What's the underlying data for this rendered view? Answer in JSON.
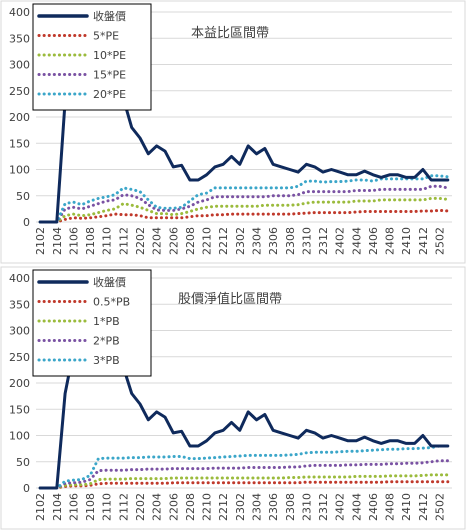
{
  "chart_data": [
    {
      "type": "line",
      "title": "本益比區間帶",
      "ylim": [
        0,
        400
      ],
      "yticks": [
        0,
        50,
        100,
        150,
        200,
        250,
        300,
        350,
        400
      ],
      "grid": true,
      "legend_placement": "top-left",
      "categories": [
        "2102",
        "2103",
        "2104",
        "2105",
        "2106",
        "2107",
        "2108",
        "2109",
        "2110",
        "2111",
        "2112",
        "2201",
        "2202",
        "2203",
        "2204",
        "2205",
        "2206",
        "2207",
        "2208",
        "2209",
        "2210",
        "2211",
        "2212",
        "2301",
        "2302",
        "2303",
        "2304",
        "2305",
        "2306",
        "2307",
        "2308",
        "2309",
        "2310",
        "2311",
        "2312",
        "2401",
        "2402",
        "2403",
        "2404",
        "2405",
        "2406",
        "2407",
        "2408",
        "2409",
        "2410",
        "2411",
        "2412",
        "2501",
        "2502",
        "2503"
      ],
      "tick_labels": [
        "2102",
        "2104",
        "2106",
        "2108",
        "2110",
        "2112",
        "2202",
        "2204",
        "2206",
        "2208",
        "2210",
        "2212",
        "2302",
        "2304",
        "2306",
        "2308",
        "2310",
        "2312",
        "2402",
        "2404",
        "2406",
        "2408",
        "2410",
        "2412",
        "2502"
      ],
      "series": [
        {
          "name": "收盤價",
          "color": "#0f2a5c",
          "style": "solid",
          "values": [
            0,
            0,
            0,
            230,
            250,
            250,
            250,
            250,
            245,
            250,
            235,
            180,
            160,
            130,
            145,
            135,
            105,
            108,
            80,
            80,
            90,
            105,
            110,
            125,
            110,
            145,
            130,
            140,
            110,
            105,
            100,
            95,
            110,
            105,
            95,
            100,
            95,
            90,
            90,
            97,
            90,
            85,
            90,
            90,
            85,
            85,
            100,
            80,
            80,
            80
          ]
        },
        {
          "name": "5*PE",
          "color": "#c0392b",
          "style": "dotted",
          "values": [
            0,
            0,
            0,
            5,
            8,
            7,
            8,
            10,
            12,
            15,
            14,
            14,
            12,
            8,
            8,
            8,
            8,
            8,
            10,
            12,
            12,
            14,
            14,
            15,
            15,
            15,
            15,
            15,
            15,
            15,
            15,
            16,
            17,
            18,
            18,
            18,
            18,
            18,
            19,
            20,
            20,
            20,
            20,
            20,
            20,
            20,
            21,
            21,
            22,
            21
          ]
        },
        {
          "name": "10*PE",
          "color": "#9bbb3c",
          "style": "dotted",
          "values": [
            0,
            0,
            0,
            12,
            15,
            12,
            14,
            18,
            22,
            25,
            35,
            32,
            28,
            22,
            16,
            16,
            14,
            16,
            20,
            25,
            28,
            30,
            30,
            30,
            30,
            30,
            30,
            32,
            32,
            32,
            32,
            33,
            36,
            38,
            38,
            38,
            38,
            38,
            40,
            40,
            40,
            42,
            42,
            42,
            42,
            42,
            42,
            45,
            45,
            43
          ]
        },
        {
          "name": "15*PE",
          "color": "#7a52a3",
          "style": "dotted",
          "values": [
            0,
            0,
            0,
            25,
            28,
            25,
            30,
            35,
            40,
            42,
            52,
            50,
            45,
            33,
            23,
            22,
            22,
            25,
            30,
            38,
            42,
            48,
            48,
            48,
            48,
            48,
            48,
            48,
            50,
            50,
            50,
            52,
            58,
            58,
            58,
            58,
            58,
            58,
            60,
            60,
            60,
            62,
            62,
            62,
            62,
            62,
            62,
            68,
            68,
            65
          ]
        },
        {
          "name": "20*PE",
          "color": "#3ba6c9",
          "style": "dotted",
          "values": [
            0,
            0,
            0,
            35,
            38,
            33,
            40,
            45,
            48,
            52,
            65,
            62,
            58,
            42,
            28,
            26,
            26,
            28,
            40,
            52,
            55,
            65,
            65,
            65,
            65,
            65,
            65,
            65,
            65,
            65,
            65,
            68,
            78,
            78,
            76,
            77,
            77,
            78,
            80,
            80,
            78,
            82,
            82,
            82,
            82,
            82,
            82,
            88,
            88,
            86
          ]
        }
      ]
    },
    {
      "type": "line",
      "title": "股價淨值比區間帶",
      "ylim": [
        0,
        400
      ],
      "yticks": [
        0,
        50,
        100,
        150,
        200,
        250,
        300,
        350,
        400
      ],
      "grid": true,
      "legend_placement": "top-left",
      "categories": [
        "2102",
        "2103",
        "2104",
        "2105",
        "2106",
        "2107",
        "2108",
        "2109",
        "2110",
        "2111",
        "2112",
        "2201",
        "2202",
        "2203",
        "2204",
        "2205",
        "2206",
        "2207",
        "2208",
        "2209",
        "2210",
        "2211",
        "2212",
        "2301",
        "2302",
        "2303",
        "2304",
        "2305",
        "2306",
        "2307",
        "2308",
        "2309",
        "2310",
        "2311",
        "2312",
        "2401",
        "2402",
        "2403",
        "2404",
        "2405",
        "2406",
        "2407",
        "2408",
        "2409",
        "2410",
        "2411",
        "2412",
        "2501",
        "2502",
        "2503"
      ],
      "tick_labels": [
        "2102",
        "2104",
        "2106",
        "2108",
        "2110",
        "2112",
        "2202",
        "2204",
        "2206",
        "2208",
        "2210",
        "2212",
        "2302",
        "2304",
        "2306",
        "2308",
        "2310",
        "2312",
        "2402",
        "2404",
        "2406",
        "2408",
        "2410",
        "2412",
        "2502"
      ],
      "series": [
        {
          "name": "收盤價",
          "color": "#0f2a5c",
          "style": "solid",
          "values": [
            0,
            0,
            0,
            180,
            260,
            250,
            220,
            250,
            250,
            250,
            230,
            180,
            160,
            130,
            145,
            135,
            105,
            108,
            80,
            80,
            90,
            105,
            110,
            125,
            110,
            145,
            130,
            140,
            110,
            105,
            100,
            95,
            110,
            105,
            95,
            100,
            95,
            90,
            90,
            97,
            90,
            85,
            90,
            90,
            85,
            85,
            100,
            80,
            80,
            80
          ]
        },
        {
          "name": "0.5*PB",
          "color": "#c0392b",
          "style": "dotted",
          "values": [
            0,
            0,
            0,
            3,
            4,
            4,
            5,
            8,
            9,
            9,
            9,
            9,
            9,
            9,
            9,
            9,
            10,
            10,
            10,
            10,
            10,
            10,
            10,
            10,
            10,
            10,
            10,
            10,
            10,
            10,
            10,
            10,
            11,
            11,
            11,
            11,
            11,
            11,
            11,
            11,
            11,
            11,
            12,
            12,
            12,
            12,
            12,
            12,
            12,
            12
          ]
        },
        {
          "name": "1*PB",
          "color": "#9bbb3c",
          "style": "dotted",
          "values": [
            0,
            0,
            0,
            5,
            6,
            6,
            8,
            16,
            17,
            17,
            17,
            18,
            18,
            18,
            18,
            18,
            19,
            19,
            19,
            19,
            19,
            19,
            19,
            19,
            19,
            19,
            19,
            19,
            19,
            19,
            20,
            20,
            21,
            21,
            21,
            21,
            21,
            21,
            22,
            22,
            22,
            22,
            23,
            23,
            23,
            23,
            24,
            25,
            25,
            25
          ]
        },
        {
          "name": "2*PB",
          "color": "#7a52a3",
          "style": "dotted",
          "values": [
            0,
            0,
            0,
            9,
            10,
            11,
            16,
            33,
            34,
            34,
            34,
            35,
            35,
            36,
            36,
            36,
            37,
            37,
            37,
            37,
            37,
            38,
            38,
            38,
            38,
            39,
            39,
            39,
            39,
            39,
            40,
            40,
            42,
            43,
            43,
            43,
            43,
            44,
            44,
            45,
            45,
            45,
            46,
            46,
            47,
            47,
            48,
            50,
            52,
            52
          ]
        },
        {
          "name": "3*PB",
          "color": "#3ba6c9",
          "style": "dotted",
          "values": [
            0,
            0,
            0,
            13,
            15,
            16,
            24,
            56,
            57,
            57,
            57,
            58,
            58,
            59,
            59,
            59,
            60,
            60,
            56,
            56,
            57,
            58,
            59,
            60,
            61,
            62,
            62,
            62,
            62,
            62,
            63,
            64,
            67,
            68,
            68,
            68,
            69,
            70,
            70,
            71,
            72,
            73,
            74,
            74,
            75,
            75,
            76,
            77,
            80,
            80
          ]
        }
      ]
    }
  ]
}
